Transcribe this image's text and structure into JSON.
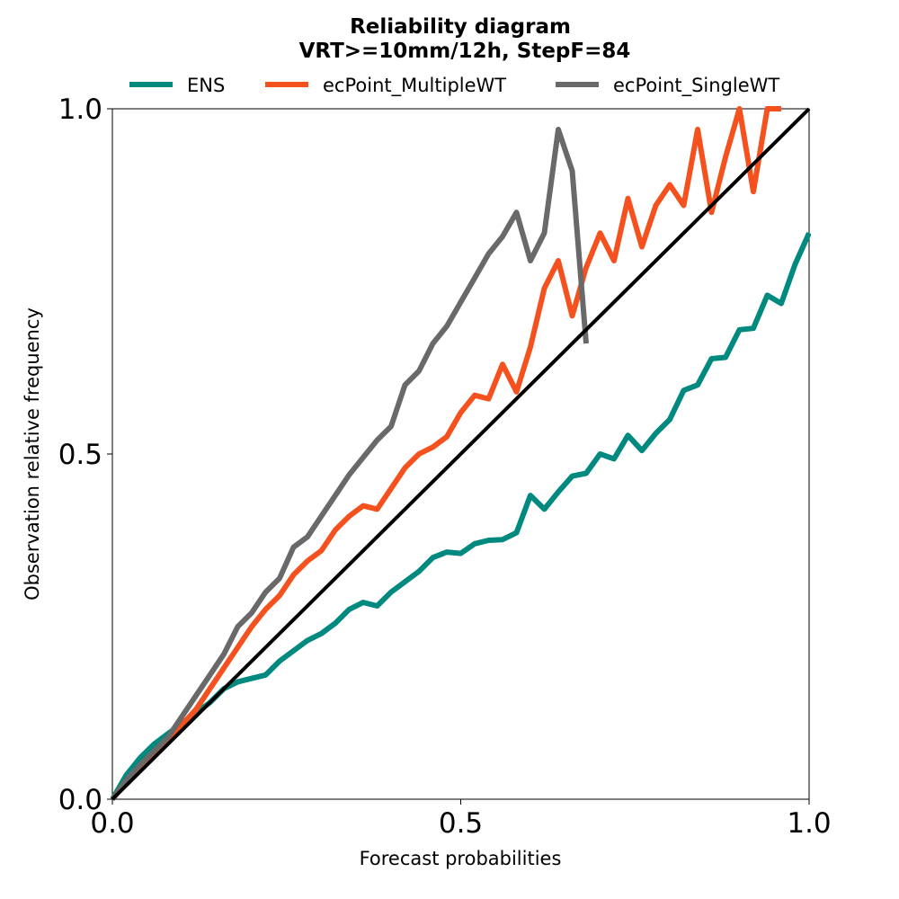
{
  "chart_data": {
    "type": "line",
    "title": "Reliability diagram",
    "subtitle": "VRT>=10mm/12h, StepF=84",
    "xlabel": "Forecast probabilities",
    "ylabel": "Observation relative frequency",
    "xlim": [
      0,
      1
    ],
    "ylim": [
      0,
      1
    ],
    "xticks": [
      {
        "value": 0.0,
        "label": "0.0"
      },
      {
        "value": 0.5,
        "label": "0.5"
      },
      {
        "value": 1.0,
        "label": "1.0"
      }
    ],
    "yticks": [
      {
        "value": 0.0,
        "label": "0.0"
      },
      {
        "value": 0.5,
        "label": "0.5"
      },
      {
        "value": 1.0,
        "label": "1.0"
      }
    ],
    "grid": false,
    "legend_position": "top-center",
    "diagonal": {
      "color": "#000000",
      "points": [
        [
          0,
          0
        ],
        [
          1,
          1
        ]
      ]
    },
    "series": [
      {
        "name": "ENS",
        "color": "#00897f",
        "x": [
          0.0,
          0.02,
          0.04,
          0.06,
          0.08,
          0.1,
          0.12,
          0.14,
          0.16,
          0.18,
          0.2,
          0.22,
          0.24,
          0.26,
          0.28,
          0.3,
          0.32,
          0.34,
          0.36,
          0.38,
          0.4,
          0.42,
          0.44,
          0.46,
          0.48,
          0.5,
          0.52,
          0.54,
          0.56,
          0.58,
          0.6,
          0.62,
          0.64,
          0.66,
          0.68,
          0.7,
          0.72,
          0.74,
          0.76,
          0.78,
          0.8,
          0.82,
          0.84,
          0.86,
          0.88,
          0.9,
          0.92,
          0.94,
          0.96,
          0.98,
          1.0
        ],
        "y": [
          0.0,
          0.035,
          0.06,
          0.08,
          0.095,
          0.11,
          0.125,
          0.14,
          0.16,
          0.17,
          0.175,
          0.18,
          0.2,
          0.215,
          0.23,
          0.24,
          0.255,
          0.275,
          0.285,
          0.28,
          0.3,
          0.315,
          0.33,
          0.35,
          0.358,
          0.356,
          0.37,
          0.375,
          0.376,
          0.386,
          0.44,
          0.42,
          0.445,
          0.468,
          0.472,
          0.5,
          0.493,
          0.527,
          0.505,
          0.53,
          0.55,
          0.592,
          0.6,
          0.638,
          0.64,
          0.68,
          0.682,
          0.73,
          0.718,
          0.775,
          0.82
        ]
      },
      {
        "name": "ecPoint_MultipleWT",
        "color": "#f4511e",
        "x": [
          0.0,
          0.02,
          0.04,
          0.06,
          0.08,
          0.1,
          0.12,
          0.14,
          0.16,
          0.18,
          0.2,
          0.22,
          0.24,
          0.26,
          0.28,
          0.3,
          0.32,
          0.34,
          0.36,
          0.38,
          0.4,
          0.42,
          0.44,
          0.46,
          0.48,
          0.5,
          0.52,
          0.54,
          0.56,
          0.58,
          0.6,
          0.62,
          0.64,
          0.66,
          0.68,
          0.7,
          0.72,
          0.74,
          0.76,
          0.78,
          0.8,
          0.82,
          0.84,
          0.86,
          0.88,
          0.9,
          0.92,
          0.94,
          0.96
        ],
        "y": [
          0.0,
          0.025,
          0.045,
          0.065,
          0.085,
          0.108,
          0.13,
          0.16,
          0.19,
          0.22,
          0.25,
          0.275,
          0.295,
          0.325,
          0.345,
          0.36,
          0.39,
          0.41,
          0.425,
          0.42,
          0.45,
          0.48,
          0.5,
          0.51,
          0.525,
          0.56,
          0.585,
          0.58,
          0.63,
          0.59,
          0.655,
          0.74,
          0.78,
          0.7,
          0.77,
          0.82,
          0.78,
          0.87,
          0.8,
          0.86,
          0.89,
          0.86,
          0.97,
          0.85,
          0.93,
          1.0,
          0.88,
          1.0,
          1.0
        ]
      },
      {
        "name": "ecPoint_SingleWT",
        "color": "#696969",
        "x": [
          0.0,
          0.02,
          0.04,
          0.06,
          0.08,
          0.1,
          0.12,
          0.14,
          0.16,
          0.18,
          0.2,
          0.22,
          0.24,
          0.26,
          0.28,
          0.3,
          0.32,
          0.34,
          0.36,
          0.38,
          0.4,
          0.42,
          0.44,
          0.46,
          0.48,
          0.5,
          0.52,
          0.54,
          0.56,
          0.58,
          0.6,
          0.62,
          0.64,
          0.66,
          0.68
        ],
        "y": [
          0.0,
          0.028,
          0.05,
          0.07,
          0.09,
          0.12,
          0.15,
          0.18,
          0.21,
          0.25,
          0.27,
          0.3,
          0.32,
          0.365,
          0.38,
          0.41,
          0.44,
          0.47,
          0.495,
          0.52,
          0.54,
          0.6,
          0.62,
          0.66,
          0.685,
          0.72,
          0.755,
          0.79,
          0.815,
          0.85,
          0.78,
          0.82,
          0.97,
          0.91,
          0.66
        ]
      }
    ]
  }
}
